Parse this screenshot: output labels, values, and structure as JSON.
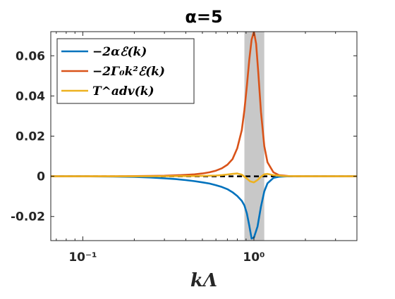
{
  "chart_data": {
    "type": "line",
    "title": "α=5",
    "xlabel": "kΛ",
    "ylabel": "",
    "xscale": "log",
    "xlim": [
      0.065,
      4.0
    ],
    "ylim": [
      -0.032,
      0.072
    ],
    "x_ticks": [
      {
        "value": 0.1,
        "label": "10⁻¹"
      },
      {
        "value": 1.0,
        "label": "10⁰"
      }
    ],
    "y_ticks": [
      {
        "value": 0.06,
        "label": "0.06"
      },
      {
        "value": 0.04,
        "label": "0.04"
      },
      {
        "value": 0.02,
        "label": "0.02"
      },
      {
        "value": 0.0,
        "label": "0"
      },
      {
        "value": -0.02,
        "label": "-0.02"
      }
    ],
    "grid": false,
    "legend_position": "top-left",
    "shaded_band": {
      "x_start": 0.88,
      "x_end": 1.15,
      "color": "#c8c8c8"
    },
    "zero_line": {
      "y": 0,
      "style": "dashed",
      "color": "#000000"
    },
    "series": [
      {
        "name": "−2αℰ(k)",
        "color": "#0072BD",
        "x": [
          0.065,
          0.1,
          0.15,
          0.2,
          0.25,
          0.3,
          0.35,
          0.4,
          0.45,
          0.5,
          0.55,
          0.6,
          0.65,
          0.7,
          0.75,
          0.8,
          0.85,
          0.88,
          0.91,
          0.94,
          0.97,
          1.0,
          1.05,
          1.1,
          1.15,
          1.2,
          1.3,
          1.4,
          1.6,
          2.0,
          4.0
        ],
        "y": [
          0,
          0,
          -0.0001,
          -0.0003,
          -0.0006,
          -0.001,
          -0.0014,
          -0.0019,
          -0.0024,
          -0.003,
          -0.0036,
          -0.0044,
          -0.0053,
          -0.0064,
          -0.0079,
          -0.0098,
          -0.0122,
          -0.0145,
          -0.0185,
          -0.0245,
          -0.031,
          -0.0305,
          -0.025,
          -0.015,
          -0.0075,
          -0.0035,
          -0.0008,
          -0.0002,
          0,
          0,
          0
        ]
      },
      {
        "name": "−2Γ₀k²ℰ(k)",
        "color": "#D95319",
        "x": [
          0.065,
          0.1,
          0.15,
          0.2,
          0.25,
          0.3,
          0.35,
          0.4,
          0.45,
          0.5,
          0.55,
          0.6,
          0.65,
          0.7,
          0.75,
          0.8,
          0.85,
          0.88,
          0.91,
          0.94,
          0.97,
          1.0,
          1.03,
          1.06,
          1.1,
          1.15,
          1.2,
          1.3,
          1.4,
          1.6,
          2.0,
          4.0
        ],
        "y": [
          0,
          0,
          0,
          0.0001,
          0.0002,
          0.0003,
          0.0005,
          0.0007,
          0.001,
          0.0014,
          0.002,
          0.0028,
          0.004,
          0.0058,
          0.0085,
          0.014,
          0.023,
          0.033,
          0.045,
          0.058,
          0.068,
          0.072,
          0.066,
          0.052,
          0.032,
          0.015,
          0.007,
          0.002,
          0.0006,
          0.0001,
          0,
          0
        ]
      },
      {
        "name": "T^adv(k)",
        "color": "#EDB120",
        "x": [
          0.065,
          0.1,
          0.2,
          0.3,
          0.4,
          0.5,
          0.6,
          0.65,
          0.7,
          0.75,
          0.8,
          0.85,
          0.9,
          0.95,
          1.0,
          1.05,
          1.1,
          1.15,
          1.2,
          1.3,
          1.5,
          2.0,
          4.0
        ],
        "y": [
          0,
          0,
          0,
          5e-05,
          0.0001,
          0.0002,
          0.0004,
          0.0006,
          0.0009,
          0.0012,
          0.0014,
          0.0008,
          -0.0008,
          -0.0025,
          -0.003,
          -0.0018,
          -0.0002,
          0.001,
          0.0012,
          0.0006,
          0.0001,
          0,
          0
        ]
      }
    ]
  }
}
